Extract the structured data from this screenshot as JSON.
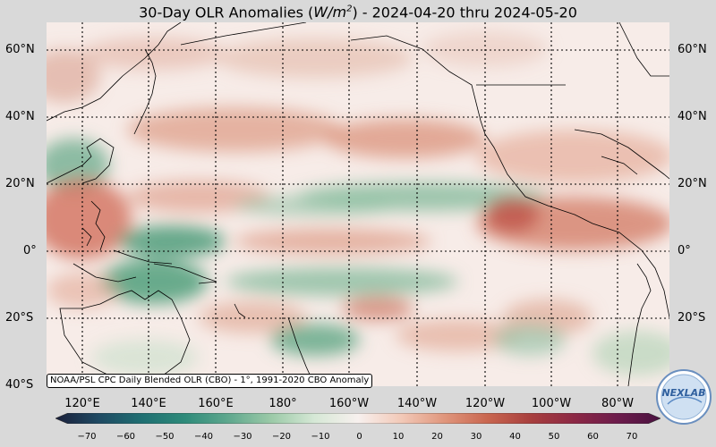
{
  "title_main": "30-Day OLR Anomalies (",
  "title_unit_W": "W/m",
  "title_unit_exp": "2",
  "title_rest": ") - 2024-04-20 thru 2024-05-20",
  "lat_labels": [
    "60°N",
    "40°N",
    "20°N",
    "0°",
    "20°S",
    "40°S"
  ],
  "lon_labels": [
    "120°E",
    "140°E",
    "160°E",
    "180°",
    "160°W",
    "140°W",
    "120°W",
    "100°W",
    "80°W"
  ],
  "caption": "NOAA/PSL CPC Daily Blended OLR (CBO) - 1°, 1991-2020 CBO Anomaly",
  "colorbar": {
    "ticks": [
      "−70",
      "−60",
      "−50",
      "−40",
      "−30",
      "−20",
      "−10",
      "0",
      "10",
      "20",
      "30",
      "40",
      "50",
      "60",
      "70"
    ],
    "colors": [
      "#1a1f3a",
      "#1f4a63",
      "#1f6f72",
      "#2e8b7a",
      "#5fa88e",
      "#9ccaa8",
      "#d6e8d6",
      "#f7f0ee",
      "#f2c9b8",
      "#e0967c",
      "#c9664f",
      "#a83f3e",
      "#8c2845",
      "#6d1c4c",
      "#4a1240"
    ]
  },
  "logo_text": "NEXLAB",
  "colors": {
    "background": "#d9d9d9",
    "map_base": "#f7ece8",
    "positive": "#d9826a",
    "negative": "#4f9e7a"
  }
}
